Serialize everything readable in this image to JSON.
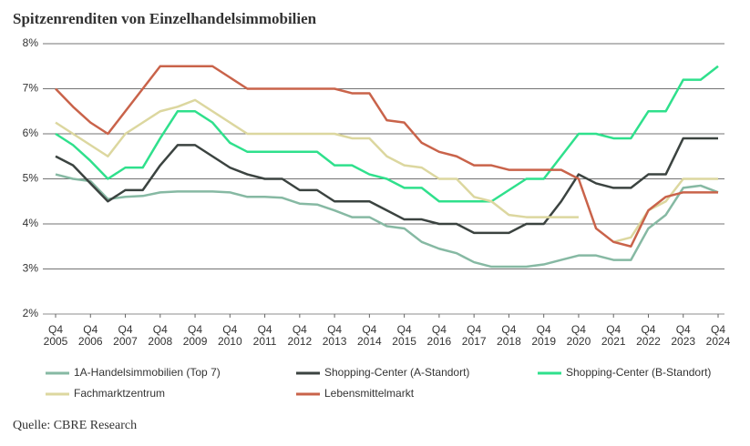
{
  "chart_data": {
    "type": "line",
    "title": "Spitzenrenditen von Einzelhandelsimmobilien",
    "source": "Quelle: CBRE Research",
    "x": [
      2005,
      2005.5,
      2006,
      2006.5,
      2007,
      2007.5,
      2008,
      2008.5,
      2009,
      2009.5,
      2010,
      2010.5,
      2011,
      2011.5,
      2012,
      2012.5,
      2013,
      2013.5,
      2014,
      2014.5,
      2015,
      2015.5,
      2016,
      2016.5,
      2017,
      2017.5,
      2018,
      2018.5,
      2019,
      2019.5,
      2020,
      2020.5,
      2021,
      2021.5,
      2022,
      2022.5,
      2023,
      2023.5,
      2024
    ],
    "xlim": [
      2005,
      2024
    ],
    "xticks": [
      {
        "value": 2005,
        "label": "Q4 2005"
      },
      {
        "value": 2006,
        "label": "Q4 2006"
      },
      {
        "value": 2007,
        "label": "Q4 2007"
      },
      {
        "value": 2008,
        "label": "Q4 2008"
      },
      {
        "value": 2009,
        "label": "Q4 2009"
      },
      {
        "value": 2010,
        "label": "Q4 2010"
      },
      {
        "value": 2011,
        "label": "Q4 2011"
      },
      {
        "value": 2012,
        "label": "Q4 2012"
      },
      {
        "value": 2013,
        "label": "Q4 2013"
      },
      {
        "value": 2014,
        "label": "Q4 2014"
      },
      {
        "value": 2015,
        "label": "Q4 2015"
      },
      {
        "value": 2016,
        "label": "Q4 2016"
      },
      {
        "value": 2017,
        "label": "Q4 2017"
      },
      {
        "value": 2018,
        "label": "Q4 2018"
      },
      {
        "value": 2019,
        "label": "Q4 2019"
      },
      {
        "value": 2020,
        "label": "Q4 2020"
      },
      {
        "value": 2021,
        "label": "Q4 2021"
      },
      {
        "value": 2022,
        "label": "Q4 2022"
      },
      {
        "value": 2023,
        "label": "Q4 2023"
      },
      {
        "value": 2024,
        "label": "Q4 2024"
      }
    ],
    "ylim": [
      2,
      8
    ],
    "yticks": [
      {
        "value": 2,
        "label": "2%"
      },
      {
        "value": 3,
        "label": "3%"
      },
      {
        "value": 4,
        "label": "4%"
      },
      {
        "value": 5,
        "label": "5%"
      },
      {
        "value": 6,
        "label": "6%"
      },
      {
        "value": 7,
        "label": "7%"
      },
      {
        "value": 8,
        "label": "8%"
      }
    ],
    "grid": true,
    "series": [
      {
        "name": "1A-Handelsimmobilien (Top 7)",
        "color": "#86b9a3",
        "values": [
          5.1,
          5.0,
          4.95,
          4.55,
          4.6,
          4.62,
          4.7,
          4.72,
          4.72,
          4.72,
          4.7,
          4.6,
          4.6,
          4.58,
          4.45,
          4.43,
          4.3,
          4.15,
          4.15,
          3.95,
          3.9,
          3.6,
          3.45,
          3.35,
          3.15,
          3.05,
          3.05,
          3.05,
          3.1,
          3.2,
          3.3,
          3.3,
          3.2,
          3.2,
          3.9,
          4.2,
          4.8,
          4.85,
          4.7
        ]
      },
      {
        "name": "Shopping-Center (A-Standort)",
        "color": "#3b4340",
        "values": [
          5.5,
          5.3,
          4.9,
          4.5,
          4.75,
          4.75,
          5.3,
          5.75,
          5.75,
          5.5,
          5.25,
          5.1,
          5.0,
          5.0,
          4.75,
          4.75,
          4.5,
          4.5,
          4.5,
          4.3,
          4.1,
          4.1,
          4.0,
          4.0,
          3.8,
          3.8,
          3.8,
          4.0,
          4.0,
          4.5,
          5.1,
          4.9,
          4.8,
          4.8,
          5.1,
          5.1,
          5.9,
          5.9,
          5.9
        ]
      },
      {
        "name": "Shopping-Center (B-Standort)",
        "color": "#2fe08c",
        "values": [
          6.0,
          5.75,
          5.4,
          5.0,
          5.25,
          5.25,
          5.9,
          6.5,
          6.5,
          6.25,
          5.8,
          5.6,
          5.6,
          5.6,
          5.6,
          5.6,
          5.3,
          5.3,
          5.1,
          5.0,
          4.8,
          4.8,
          4.5,
          4.5,
          4.5,
          4.5,
          4.75,
          5.0,
          5.0,
          5.5,
          6.0,
          6.0,
          5.9,
          5.9,
          6.5,
          6.5,
          7.2,
          7.2,
          7.5
        ]
      },
      {
        "name": "Fachmarktzentrum",
        "color": "#dcd79f",
        "values": [
          6.25,
          6.0,
          5.75,
          5.5,
          6.0,
          6.25,
          6.5,
          6.6,
          6.75,
          6.5,
          6.25,
          6.0,
          6.0,
          6.0,
          6.0,
          6.0,
          6.0,
          5.9,
          5.9,
          5.5,
          5.3,
          5.25,
          5.0,
          5.0,
          4.6,
          4.5,
          4.2,
          4.15,
          4.15,
          4.15,
          4.15,
          null,
          3.6,
          3.7,
          4.3,
          4.5,
          5.0,
          5.0,
          5.0
        ]
      },
      {
        "name": "Lebensmittelmarkt",
        "color": "#c9634a",
        "values": [
          7.0,
          6.6,
          6.25,
          6.0,
          6.5,
          7.0,
          7.5,
          7.5,
          7.5,
          7.5,
          7.25,
          7.0,
          7.0,
          7.0,
          7.0,
          7.0,
          7.0,
          6.9,
          6.9,
          6.3,
          6.25,
          5.8,
          5.6,
          5.5,
          5.3,
          5.3,
          5.2,
          5.2,
          5.2,
          5.2,
          5.0,
          3.9,
          3.6,
          3.5,
          4.3,
          4.6,
          4.7,
          4.7,
          4.7
        ]
      }
    ]
  }
}
